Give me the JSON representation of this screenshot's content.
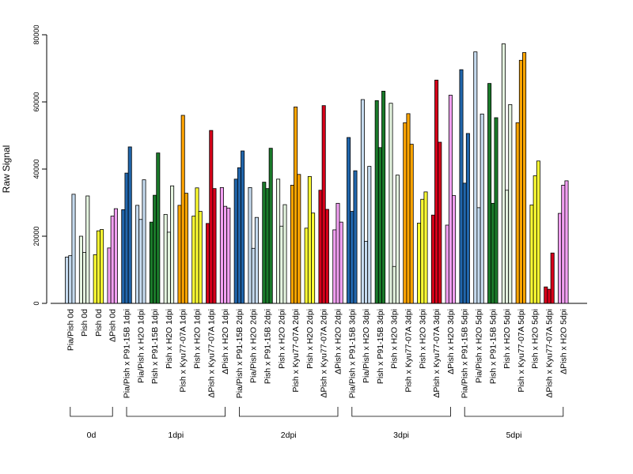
{
  "chart_data": {
    "type": "bar",
    "ylabel": "Raw Signal",
    "ylim": [
      0,
      80000
    ],
    "yticks": [
      0,
      20000,
      40000,
      60000,
      80000
    ],
    "groups": [
      {
        "label": "0d",
        "conditions": [
          {
            "label": "Pia/Pish 0d",
            "color": "#c6dbef",
            "values": [
              13800,
              14200,
              32500
            ]
          },
          {
            "label": "Pish 0d",
            "color": "#e5f5e0",
            "values": [
              20000,
              15200,
              32000
            ]
          },
          {
            "label": "Pish 0d",
            "color": "#ffff33",
            "values": [
              14500,
              21600,
              22000
            ]
          },
          {
            "label": "ΔPish 0d",
            "color": "#f2a0f2",
            "values": [
              16500,
              26000,
              28200
            ]
          }
        ]
      },
      {
        "label": "1dpi",
        "conditions": [
          {
            "label": "Pia/Pish x P91-15B 1dpi",
            "color": "#2166ac",
            "values": [
              27900,
              38800,
              46600
            ]
          },
          {
            "label": "Pia/Pish x H2O 1dpi",
            "color": "#c6dbef",
            "values": [
              29200,
              25000,
              36800
            ]
          },
          {
            "label": "Pish x P91-15B 1dpi",
            "color": "#1a7a2a",
            "values": [
              24200,
              32200,
              44800
            ]
          },
          {
            "label": "Pish x H2O 1dpi",
            "color": "#e5f5e0",
            "values": [
              26500,
              21200,
              35000
            ]
          },
          {
            "label": "Pish x Kyu77-07A 1dpi",
            "color": "#ffa500",
            "values": [
              29200,
              56000,
              32800
            ]
          },
          {
            "label": "Pish x H2O 1dpi",
            "color": "#ffff33",
            "values": [
              26000,
              34400,
              27400
            ]
          },
          {
            "label": "ΔPish x Kyu77-07A 1dpi",
            "color": "#d7001a",
            "values": [
              23800,
              51500,
              34200
            ]
          },
          {
            "label": "ΔPish x H2O 1dpi",
            "color": "#f2a0f2",
            "values": [
              34500,
              28900,
              28400
            ]
          }
        ]
      },
      {
        "label": "2dpi",
        "conditions": [
          {
            "label": "Pia/Pish x P91-15B 2dpi",
            "color": "#2166ac",
            "values": [
              37000,
              40400,
              45400
            ]
          },
          {
            "label": "Pia/Pish x H2O 2dpi",
            "color": "#c6dbef",
            "values": [
              34500,
              16400,
              25600
            ]
          },
          {
            "label": "Pish x P91-15B 2dpi",
            "color": "#1a7a2a",
            "values": [
              36100,
              34200,
              46200
            ]
          },
          {
            "label": "Pish x H2O 2dpi",
            "color": "#e5f5e0",
            "values": [
              37000,
              23000,
              29400
            ]
          },
          {
            "label": "Pish x Kyu77-07A 2dpi",
            "color": "#ffa500",
            "values": [
              35200,
              58500,
              38400
            ]
          },
          {
            "label": "Pish x H2O 2dpi",
            "color": "#ffff33",
            "values": [
              22400,
              37800,
              26900
            ]
          },
          {
            "label": "ΔPish x Kyu77-07A 2dpi",
            "color": "#d7001a",
            "values": [
              33700,
              58900,
              28000
            ]
          },
          {
            "label": "ΔPish x H2O 2dpi",
            "color": "#f2a0f2",
            "values": [
              21900,
              29800,
              24200
            ]
          }
        ]
      },
      {
        "label": "3dpi",
        "conditions": [
          {
            "label": "Pia/Pish x P91-15B 3dpi",
            "color": "#2166ac",
            "values": [
              49400,
              27400,
              39500
            ]
          },
          {
            "label": "Pia/Pish x H2O 3dpi",
            "color": "#c6dbef",
            "values": [
              60700,
              18500,
              40800
            ]
          },
          {
            "label": "Pish x P91-15B 3dpi",
            "color": "#1a7a2a",
            "values": [
              60400,
              46400,
              63200
            ]
          },
          {
            "label": "Pish x H2O 3dpi",
            "color": "#e5f5e0",
            "values": [
              59600,
              11000,
              38200
            ]
          },
          {
            "label": "Pish x Kyu77-07A 3dpi",
            "color": "#ffa500",
            "values": [
              53800,
              56500,
              47400
            ]
          },
          {
            "label": "Pish x H2O 3dpi",
            "color": "#ffff33",
            "values": [
              23900,
              31000,
              33200
            ]
          },
          {
            "label": "ΔPish x Kyu77-07A 3dpi",
            "color": "#d7001a",
            "values": [
              26300,
              66500,
              48000
            ]
          },
          {
            "label": "ΔPish x H2O 3dpi",
            "color": "#f2a0f2",
            "values": [
              23300,
              62000,
              32100
            ]
          }
        ]
      },
      {
        "label": "5dpi",
        "conditions": [
          {
            "label": "Pia/Pish x P91-15B 5dpi",
            "color": "#2166ac",
            "values": [
              69600,
              35800,
              50600
            ]
          },
          {
            "label": "Pia/Pish x H2O 5dpi",
            "color": "#c6dbef",
            "values": [
              74900,
              28500,
              56400
            ]
          },
          {
            "label": "Pish x P91-15B 5dpi",
            "color": "#1a7a2a",
            "values": [
              65500,
              29800,
              55300
            ]
          },
          {
            "label": "Pish x H2O 5dpi",
            "color": "#e5f5e0",
            "values": [
              77300,
              33700,
              59200
            ]
          },
          {
            "label": "Pish x Kyu77-07A 5dpi",
            "color": "#ffa500",
            "values": [
              53800,
              72400,
              74700
            ]
          },
          {
            "label": "Pish x H2O 5dpi",
            "color": "#ffff33",
            "values": [
              29300,
              38000,
              42400
            ]
          },
          {
            "label": "ΔPish x Kyu77-07A 5dpi",
            "color": "#d7001a",
            "values": [
              4900,
              4200,
              15000
            ]
          },
          {
            "label": "ΔPish x H2O 5dpi",
            "color": "#f2a0f2",
            "values": [
              26800,
              35200,
              36500
            ]
          }
        ]
      }
    ]
  }
}
